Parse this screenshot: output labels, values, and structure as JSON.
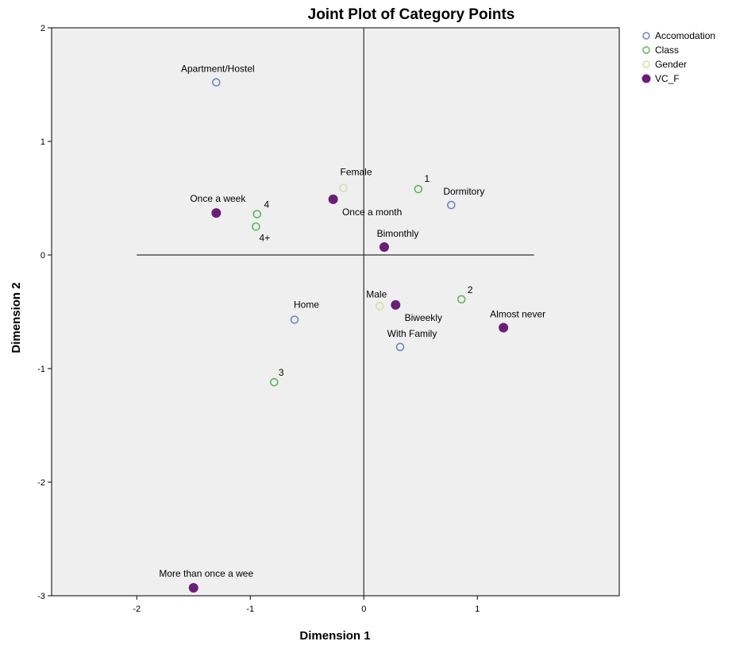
{
  "chart_data": {
    "type": "scatter",
    "title": "Joint Plot of Category Points",
    "xlabel": "Dimension 1",
    "ylabel": "Dimension 2",
    "xlim": [
      -2.75,
      2.25
    ],
    "ylim": [
      -3,
      2
    ],
    "x_ticks": [
      "-2",
      "-1",
      "0",
      "1"
    ],
    "y_ticks": [
      "2",
      "1",
      "0",
      "-1",
      "-2",
      "-3"
    ],
    "grid": false,
    "legend_placement": "top-right outside",
    "plot_background": "#efefef",
    "reference_lines": {
      "horizontal_y": 0,
      "horizontal_x_range": [
        -2,
        1.5
      ],
      "vertical_x": 0
    },
    "series": [
      {
        "name": "Accomodation",
        "color": "#6f86b8",
        "marker": "open-circle",
        "points": [
          {
            "label": "Apartment/Hostel",
            "x": -1.3,
            "y": 1.52
          },
          {
            "label": "Dormitory",
            "x": 0.77,
            "y": 0.44
          },
          {
            "label": "Home",
            "x": -0.61,
            "y": -0.57
          },
          {
            "label": "With Family",
            "x": 0.32,
            "y": -0.81
          }
        ]
      },
      {
        "name": "Class",
        "color": "#5cb85c",
        "marker": "open-circle",
        "points": [
          {
            "label": "4",
            "x": -0.94,
            "y": 0.36
          },
          {
            "label": "4+",
            "x": -0.95,
            "y": 0.25
          },
          {
            "label": "1",
            "x": 0.48,
            "y": 0.58
          },
          {
            "label": "2",
            "x": 0.86,
            "y": -0.39
          },
          {
            "label": "3",
            "x": -0.79,
            "y": -1.12
          }
        ]
      },
      {
        "name": "Gender",
        "color": "#d8dca8",
        "marker": "open-circle",
        "points": [
          {
            "label": "Female",
            "x": -0.18,
            "y": 0.59
          },
          {
            "label": "Male",
            "x": 0.14,
            "y": -0.45
          }
        ]
      },
      {
        "name": "VC_F",
        "color": "#6a1f77",
        "marker": "filled-circle",
        "points": [
          {
            "label": "Once a week",
            "x": -1.3,
            "y": 0.37
          },
          {
            "label": "Once a month",
            "x": -0.27,
            "y": 0.49
          },
          {
            "label": "Bimonthly",
            "x": 0.18,
            "y": 0.07
          },
          {
            "label": "Biweekly",
            "x": 0.28,
            "y": -0.44
          },
          {
            "label": "Almost never",
            "x": 1.23,
            "y": -0.64
          },
          {
            "label": "More than once a wee",
            "x": -1.5,
            "y": -2.93
          }
        ]
      }
    ]
  }
}
